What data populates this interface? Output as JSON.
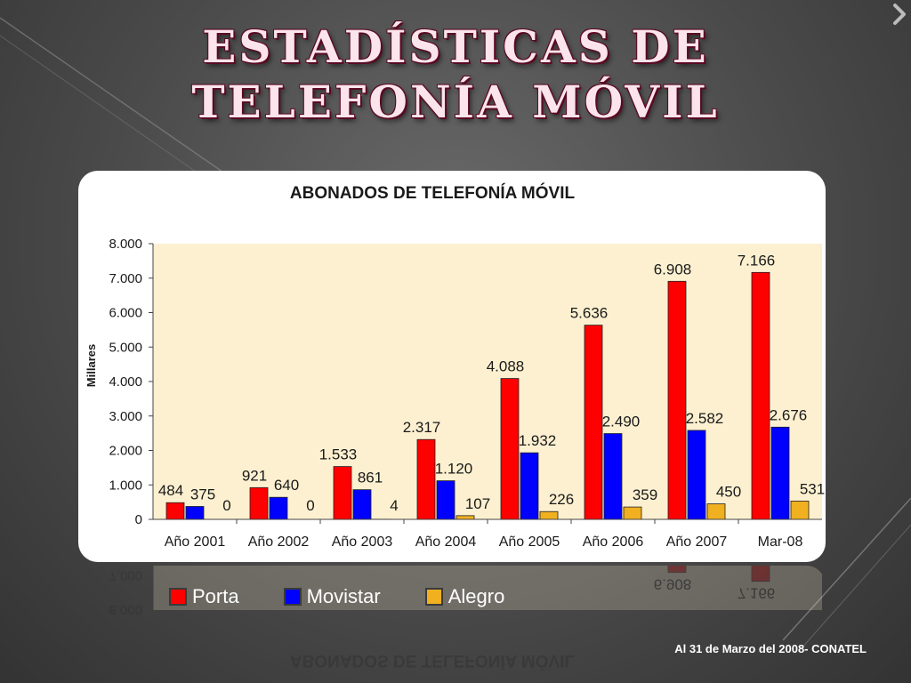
{
  "slide": {
    "title": "Estadísticas de Telefonía Móvil",
    "source_note": "Al 31 de Marzo del 2008- CONATEL"
  },
  "chart_data": {
    "type": "bar",
    "title": "ABONADOS DE TELEFONÍA MÓVIL",
    "ylabel": "Millares",
    "xlabel": "",
    "ylim": [
      0,
      8000
    ],
    "ytick_values": [
      0,
      1000,
      2000,
      3000,
      4000,
      5000,
      6000,
      7000,
      8000
    ],
    "ytick_labels": [
      "0",
      "1.000",
      "2.000",
      "3.000",
      "4.000",
      "5.000",
      "6.000",
      "7.000",
      "8.000"
    ],
    "categories": [
      "Año 2001",
      "Año 2002",
      "Año 2003",
      "Año 2004",
      "Año 2005",
      "Año 2006",
      "Año 2007",
      "Mar-08"
    ],
    "series": [
      {
        "name": "Porta",
        "color": "#ff0000",
        "values": [
          484,
          921,
          1533,
          2317,
          4088,
          5636,
          6908,
          7166
        ],
        "labels": [
          "484",
          "921",
          "1.533",
          "2.317",
          "4.088",
          "5.636",
          "6.908",
          "7.166"
        ]
      },
      {
        "name": "Movistar",
        "color": "#0000ff",
        "values": [
          375,
          640,
          861,
          1120,
          1932,
          2490,
          2582,
          2676
        ],
        "labels": [
          "375",
          "640",
          "861",
          "1.120",
          "1.932",
          "2.490",
          "2.582",
          "2.676"
        ]
      },
      {
        "name": "Alegro",
        "color": "#f0b020",
        "values": [
          0,
          0,
          4,
          107,
          226,
          359,
          450,
          531
        ],
        "labels": [
          "0",
          "0",
          "4",
          "107",
          "226",
          "359",
          "450",
          "531"
        ]
      }
    ],
    "legend_position": "bottom",
    "grid": false,
    "plot_background": "#fcf0d0"
  }
}
